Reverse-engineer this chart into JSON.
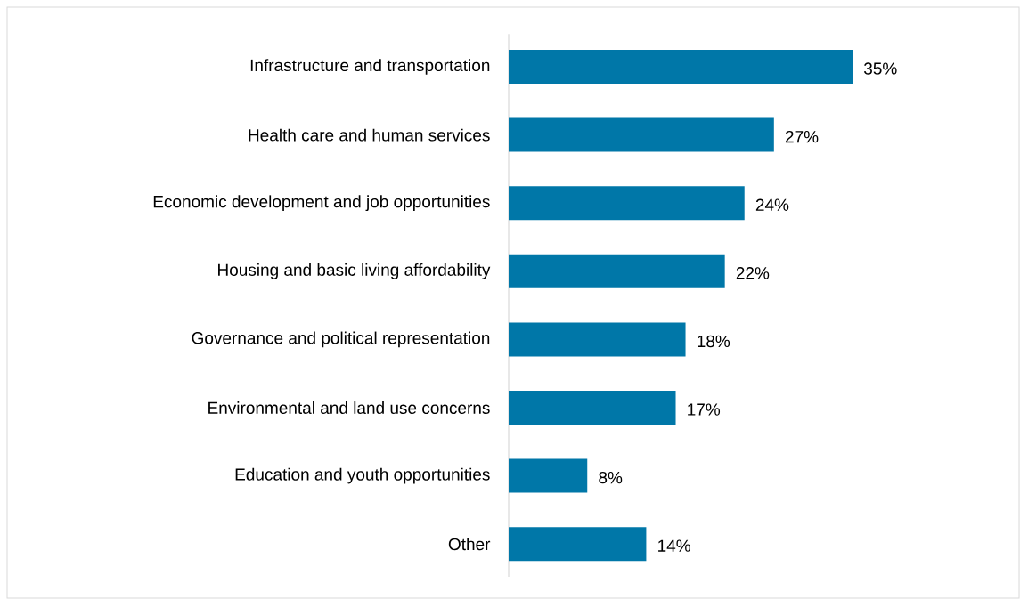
{
  "chart_data": {
    "type": "bar",
    "orientation": "horizontal",
    "color": "#0077a8",
    "categories": [
      "Infrastructure and transportation",
      "Health care and human services",
      "Economic development and job opportunities",
      "Housing and basic living affordability",
      "Governance and political representation",
      "Environmental and land use concerns",
      "Education and youth opportunities",
      "Other"
    ],
    "values": [
      35,
      27,
      24,
      22,
      18,
      17,
      8,
      14
    ],
    "value_labels": [
      "35%",
      "27%",
      "24%",
      "22%",
      "18%",
      "17%",
      "8%",
      "14%"
    ]
  }
}
